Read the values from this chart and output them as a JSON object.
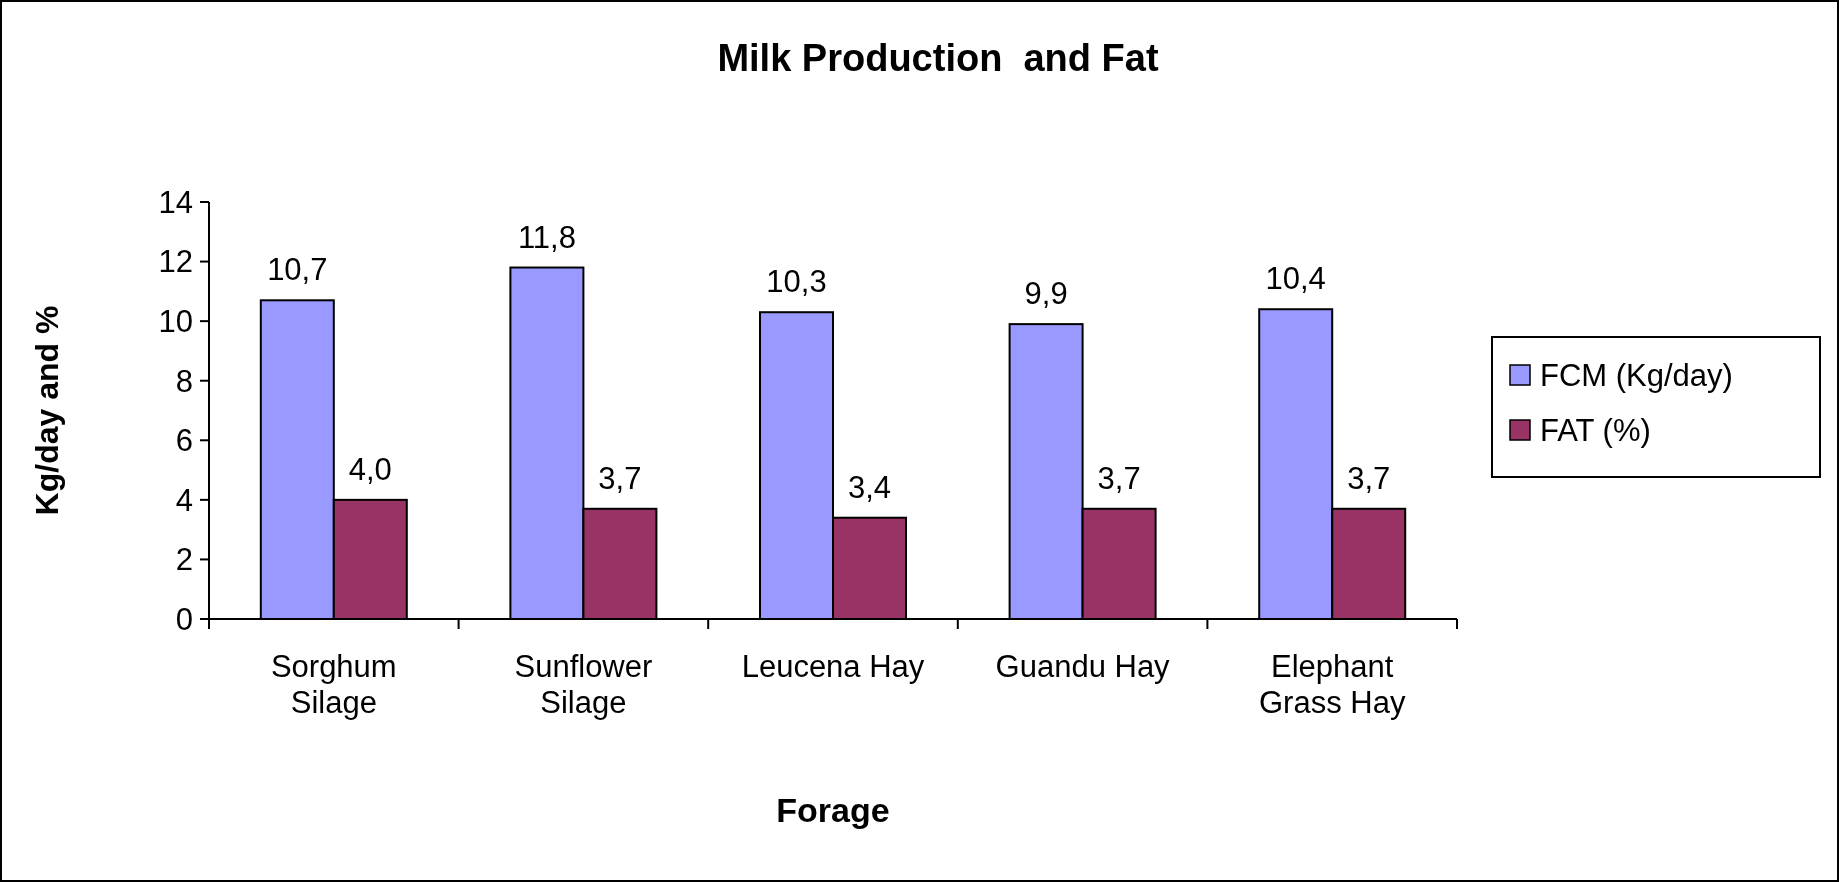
{
  "chart_data": {
    "type": "bar",
    "title": "Milk Production  and Fat",
    "xlabel": "Forage",
    "ylabel": "Kg/day and %",
    "categories": [
      "Sorghum Silage",
      "Sunflower Silage",
      "Leucena Hay",
      "Guandu Hay",
      "Elephant Grass Hay"
    ],
    "series": [
      {
        "name": "FCM (Kg/day)",
        "color": "#9999ff",
        "values": [
          10.7,
          11.8,
          10.3,
          9.9,
          10.4
        ],
        "value_labels": [
          "10,7",
          "11,8",
          "10,3",
          "9,9",
          "10,4"
        ]
      },
      {
        "name": "FAT (%)",
        "color": "#993366",
        "values": [
          4.0,
          3.7,
          3.4,
          3.7,
          3.7
        ],
        "value_labels": [
          "4,0",
          "3,7",
          "3,4",
          "3,7",
          "3,7"
        ]
      }
    ],
    "ylim": [
      0,
      14
    ],
    "yticks": [
      0,
      2,
      4,
      6,
      8,
      10,
      12,
      14
    ],
    "grid": false,
    "legend": "right"
  }
}
